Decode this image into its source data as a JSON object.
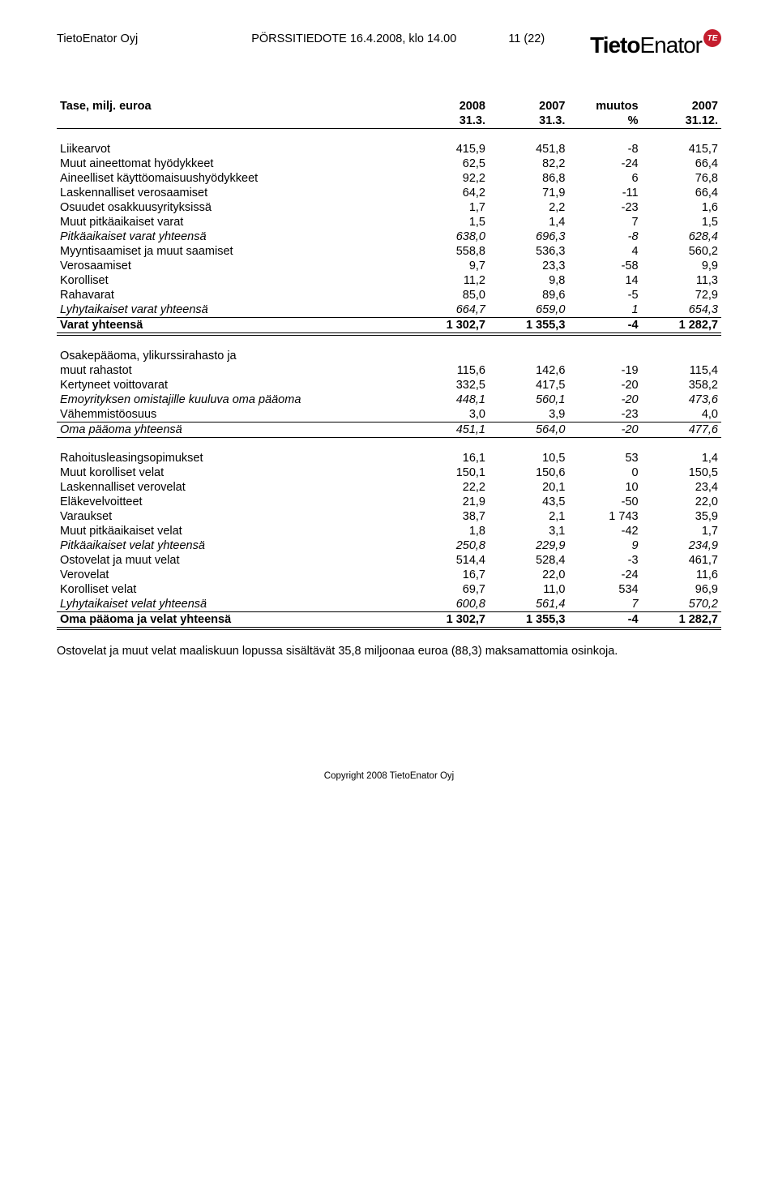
{
  "header": {
    "company": "TietoEnator Oyj",
    "doc_type": "PÖRSSITIEDOTE 16.4.2008, klo 14.00",
    "page": "11 (22)",
    "logo_bold": "Tieto",
    "logo_light": "Enator",
    "logo_badge": "TE"
  },
  "table": {
    "title": "Tase, milj. euroa",
    "col_headers_top": [
      "",
      "2008",
      "2007",
      "muutos",
      "2007"
    ],
    "col_headers_bot": [
      "",
      "31.3.",
      "31.3.",
      "%",
      "31.12."
    ]
  },
  "sections": [
    {
      "rows": [
        {
          "label": "Liikearvot",
          "v": [
            "415,9",
            "451,8",
            "-8",
            "415,7"
          ]
        },
        {
          "label": "Muut aineettomat hyödykkeet",
          "v": [
            "62,5",
            "82,2",
            "-24",
            "66,4"
          ]
        },
        {
          "label": "Aineelliset käyttöomaisuushyödykkeet",
          "v": [
            "92,2",
            "86,8",
            "6",
            "76,8"
          ]
        },
        {
          "label": "Laskennalliset verosaamiset",
          "v": [
            "64,2",
            "71,9",
            "-11",
            "66,4"
          ]
        },
        {
          "label": "Osuudet osakkuusyrityksissä",
          "v": [
            "1,7",
            "2,2",
            "-23",
            "1,6"
          ]
        },
        {
          "label": "Muut pitkäaikaiset varat",
          "v": [
            "1,5",
            "1,4",
            "7",
            "1,5"
          ]
        },
        {
          "label": "Pitkäaikaiset varat yhteensä",
          "v": [
            "638,0",
            "696,3",
            "-8",
            "628,4"
          ],
          "italic": true
        },
        {
          "label": "Myyntisaamiset ja muut saamiset",
          "v": [
            "558,8",
            "536,3",
            "4",
            "560,2"
          ]
        },
        {
          "label": "Verosaamiset",
          "v": [
            "9,7",
            "23,3",
            "-58",
            "9,9"
          ]
        },
        {
          "label": "Korolliset",
          "v": [
            "11,2",
            "9,8",
            "14",
            "11,3"
          ]
        },
        {
          "label": "Rahavarat",
          "v": [
            "85,0",
            "89,6",
            "-5",
            "72,9"
          ]
        },
        {
          "label": "Lyhytaikaiset varat yhteensä",
          "v": [
            "664,7",
            "659,0",
            "1",
            "654,3"
          ],
          "italic": true,
          "thin_top": false
        }
      ],
      "total": {
        "label": "Varat yhteensä",
        "v": [
          "1 302,7",
          "1 355,3",
          "-4",
          "1 282,7"
        ]
      }
    },
    {
      "rows": [
        {
          "label": "Osakepääoma, ylikurssirahasto ja",
          "v": [
            "",
            "",
            "",
            ""
          ]
        },
        {
          "label": "muut rahastot",
          "v": [
            "115,6",
            "142,6",
            "-19",
            "115,4"
          ]
        },
        {
          "label": "Kertyneet voittovarat",
          "v": [
            "332,5",
            "417,5",
            "-20",
            "358,2"
          ]
        },
        {
          "label": "Emoyrityksen omistajille kuuluva oma pääoma",
          "v": [
            "448,1",
            "560,1",
            "-20",
            "473,6"
          ],
          "italic": true
        },
        {
          "label": "Vähemmistöosuus",
          "v": [
            "3,0",
            "3,9",
            "-23",
            "4,0"
          ]
        }
      ],
      "subtotal": {
        "label": "Oma pääoma yhteensä",
        "v": [
          "451,1",
          "564,0",
          "-20",
          "477,6"
        ],
        "italic": true
      }
    },
    {
      "rows": [
        {
          "label": "Rahoitusleasingsopimukset",
          "v": [
            "16,1",
            "10,5",
            "53",
            "1,4"
          ]
        },
        {
          "label": "Muut korolliset velat",
          "v": [
            "150,1",
            "150,6",
            "0",
            "150,5"
          ]
        },
        {
          "label": "Laskennalliset verovelat",
          "v": [
            "22,2",
            "20,1",
            "10",
            "23,4"
          ]
        },
        {
          "label": "Eläkevelvoitteet",
          "v": [
            "21,9",
            "43,5",
            "-50",
            "22,0"
          ]
        },
        {
          "label": "Varaukset",
          "v": [
            "38,7",
            "2,1",
            "1 743",
            "35,9"
          ]
        },
        {
          "label": "Muut pitkäaikaiset velat",
          "v": [
            "1,8",
            "3,1",
            "-42",
            "1,7"
          ]
        },
        {
          "label": "Pitkäaikaiset velat yhteensä",
          "v": [
            "250,8",
            "229,9",
            "9",
            "234,9"
          ],
          "italic": true
        },
        {
          "label": "Ostovelat ja muut velat",
          "v": [
            "514,4",
            "528,4",
            "-3",
            "461,7"
          ]
        },
        {
          "label": "Verovelat",
          "v": [
            "16,7",
            "22,0",
            "-24",
            "11,6"
          ]
        },
        {
          "label": "Korolliset velat",
          "v": [
            "69,7",
            "11,0",
            "534",
            "96,9"
          ]
        },
        {
          "label": "Lyhytaikaiset velat yhteensä",
          "v": [
            "600,8",
            "561,4",
            "7",
            "570,2"
          ],
          "italic": true
        }
      ],
      "total": {
        "label": "Oma pääoma ja velat yhteensä",
        "v": [
          "1 302,7",
          "1 355,3",
          "-4",
          "1 282,7"
        ]
      }
    }
  ],
  "note": "Ostovelat ja muut velat maaliskuun lopussa sisältävät 35,8 miljoonaa euroa (88,3) maksamattomia osinkoja.",
  "footer": "Copyright 2008 TietoEnator Oyj"
}
